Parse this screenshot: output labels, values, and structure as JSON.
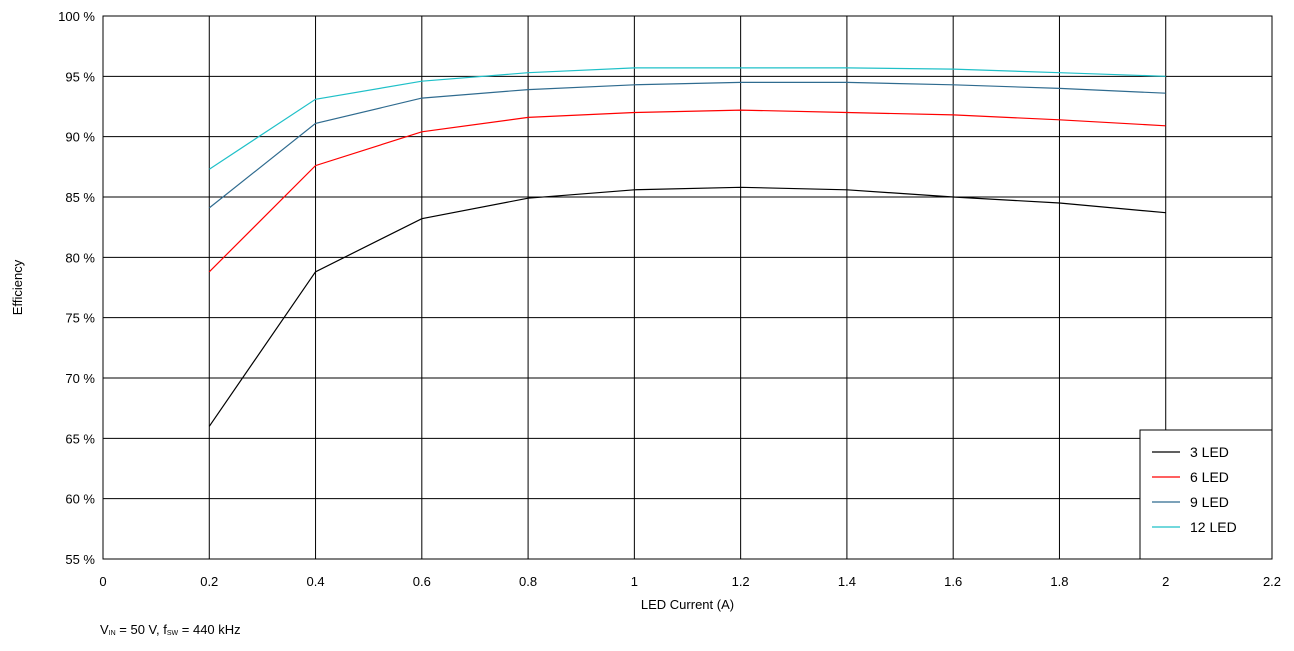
{
  "chart_data": {
    "type": "line",
    "title": "",
    "xlabel": "LED Current (A)",
    "ylabel": "Efficiency",
    "xlim": [
      0,
      2.2
    ],
    "ylim": [
      55,
      100
    ],
    "x_ticks": [
      0,
      0.2,
      0.4,
      0.6,
      0.8,
      1,
      1.2,
      1.4,
      1.6,
      1.8,
      2,
      2.2
    ],
    "x_tick_labels": [
      "0",
      "0.2",
      "0.4",
      "0.6",
      "0.8",
      "1",
      "1.2",
      "1.4",
      "1.6",
      "1.8",
      "2",
      "2.2"
    ],
    "y_ticks": [
      55,
      60,
      65,
      70,
      75,
      80,
      85,
      90,
      95,
      100
    ],
    "y_tick_labels": [
      "55 %",
      "60 %",
      "65 %",
      "70 %",
      "75 %",
      "80 %",
      "85 %",
      "90 %",
      "95 %",
      "100 %"
    ],
    "grid": true,
    "legend_position": "bottom-right",
    "series": [
      {
        "name": "3 LED",
        "color": "#000000",
        "x": [
          0.2,
          0.4,
          0.6,
          0.8,
          1.0,
          1.2,
          1.4,
          1.6,
          1.8,
          2.0
        ],
        "y": [
          66.0,
          78.8,
          83.2,
          84.9,
          85.6,
          85.8,
          85.6,
          85.0,
          84.5,
          83.7
        ]
      },
      {
        "name": "6 LED",
        "color": "#ff0000",
        "x": [
          0.2,
          0.4,
          0.6,
          0.8,
          1.0,
          1.2,
          1.4,
          1.6,
          1.8,
          2.0
        ],
        "y": [
          78.8,
          87.6,
          90.4,
          91.6,
          92.0,
          92.2,
          92.0,
          91.8,
          91.4,
          90.9
        ]
      },
      {
        "name": "9 LED",
        "color": "#2f6b8f",
        "x": [
          0.2,
          0.4,
          0.6,
          0.8,
          1.0,
          1.2,
          1.4,
          1.6,
          1.8,
          2.0
        ],
        "y": [
          84.1,
          91.1,
          93.2,
          93.9,
          94.3,
          94.5,
          94.5,
          94.3,
          94.0,
          93.6
        ]
      },
      {
        "name": "12 LED",
        "color": "#1fc0c8",
        "x": [
          0.2,
          0.4,
          0.6,
          0.8,
          1.0,
          1.2,
          1.4,
          1.6,
          1.8,
          2.0
        ],
        "y": [
          87.3,
          93.1,
          94.6,
          95.3,
          95.7,
          95.7,
          95.7,
          95.6,
          95.3,
          95.0
        ]
      }
    ],
    "footnote": {
      "v_main": "V",
      "v_sub": "IN",
      "mid": " = 50 V, f",
      "f_sub": "SW",
      "end": " = 440 kHz"
    }
  }
}
